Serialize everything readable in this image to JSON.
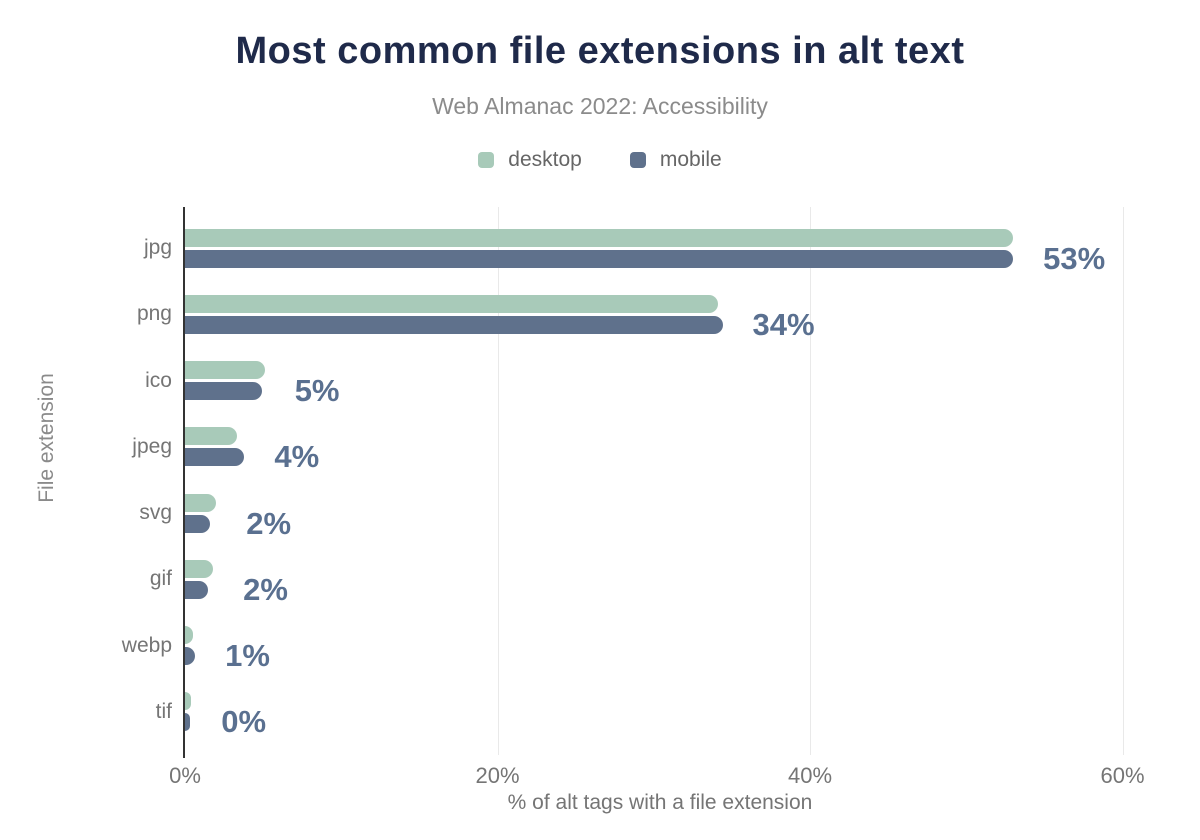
{
  "header": {
    "title": "Most common file extensions in alt text",
    "subtitle": "Web Almanac 2022: Accessibility"
  },
  "legend": [
    {
      "label": "desktop",
      "color": "#a8cab9"
    },
    {
      "label": "mobile",
      "color": "#5f718c"
    }
  ],
  "chart_data": {
    "type": "bar",
    "orientation": "horizontal",
    "title": "Most common file extensions in alt text",
    "subtitle": "Web Almanac 2022: Accessibility",
    "categories": [
      "jpg",
      "png",
      "ico",
      "jpeg",
      "svg",
      "gif",
      "webp",
      "tif"
    ],
    "series": [
      {
        "name": "desktop",
        "color": "#a8cab9",
        "values": [
          53,
          34.1,
          5.1,
          3.3,
          2.0,
          1.8,
          0.5,
          0.4
        ]
      },
      {
        "name": "mobile",
        "color": "#5f718c",
        "values": [
          53,
          34.4,
          4.9,
          3.8,
          1.6,
          1.5,
          0.65,
          0.3
        ]
      }
    ],
    "value_labels": [
      "53%",
      "34%",
      "5%",
      "4%",
      "2%",
      "2%",
      "1%",
      "0%"
    ],
    "xlabel": "% of alt tags with a file extension",
    "ylabel": "File extension",
    "xlim": [
      0,
      60
    ],
    "x_ticks": [
      "0%",
      "20%",
      "40%",
      "60%"
    ],
    "x_tick_values": [
      0,
      20,
      40,
      60
    ],
    "gridline_values": [
      20,
      40,
      60
    ],
    "grid": true,
    "legend_position": "top",
    "colors": {
      "title": "#1f2a4a",
      "subtitle": "#8b8b8b",
      "axis_line": "#333333",
      "gridline": "#e9e9e9",
      "tick_text": "#757575",
      "value_label": "#5a7090"
    }
  }
}
